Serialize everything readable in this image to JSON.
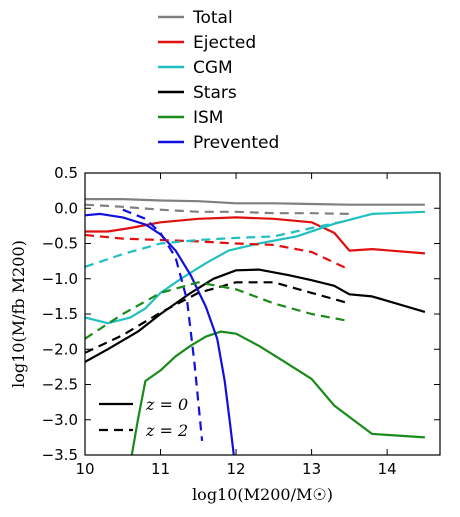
{
  "chart_data": {
    "type": "line",
    "title": "",
    "xlabel": "log10(M200/M☉)",
    "ylabel": "log10(M/fb M200)",
    "xlim": [
      10,
      14.7
    ],
    "ylim": [
      -3.5,
      0.5
    ],
    "xticks": [
      10,
      11,
      12,
      13,
      14
    ],
    "xtick_labels": [
      "10",
      "11",
      "12",
      "13",
      "14"
    ],
    "yticks": [
      0.5,
      0.0,
      -0.5,
      -1.0,
      -1.5,
      -2.0,
      -2.5,
      -3.0,
      -3.5
    ],
    "ytick_labels": [
      "0.5",
      "0.0",
      "−0.5",
      "−1.0",
      "−1.5",
      "−2.0",
      "−2.5",
      "−3.0",
      "−3.5"
    ],
    "grid": false,
    "legend_placement": "above",
    "series": [
      {
        "name": "Total",
        "color": "#808080",
        "linestyle": "solid",
        "x": [
          10.0,
          10.5,
          11.0,
          11.5,
          12.0,
          12.5,
          13.0,
          13.5,
          14.0,
          14.5
        ],
        "y": [
          0.13,
          0.13,
          0.11,
          0.1,
          0.07,
          0.07,
          0.06,
          0.05,
          0.05,
          0.05
        ]
      },
      {
        "name": "Ejected",
        "color": "#e01010",
        "linestyle": "solid",
        "x": [
          10.0,
          10.3,
          10.6,
          11.0,
          11.5,
          12.0,
          12.5,
          13.0,
          13.3,
          13.5,
          13.8,
          14.5
        ],
        "y": [
          -0.33,
          -0.33,
          -0.28,
          -0.2,
          -0.15,
          -0.13,
          -0.15,
          -0.2,
          -0.35,
          -0.6,
          -0.58,
          -0.64
        ]
      },
      {
        "name": "CGM",
        "color": "#20c0c0",
        "linestyle": "solid",
        "x": [
          10.0,
          10.3,
          10.6,
          10.8,
          11.0,
          11.3,
          11.6,
          11.9,
          12.3,
          12.8,
          13.3,
          13.8,
          14.5
        ],
        "y": [
          -1.55,
          -1.63,
          -1.55,
          -1.42,
          -1.2,
          -0.98,
          -0.78,
          -0.6,
          -0.5,
          -0.4,
          -0.22,
          -0.08,
          -0.05
        ]
      },
      {
        "name": "Stars",
        "color": "#000000",
        "linestyle": "solid",
        "x": [
          10.0,
          10.3,
          10.7,
          11.0,
          11.4,
          11.7,
          12.0,
          12.3,
          12.7,
          13.0,
          13.3,
          13.5,
          13.8,
          14.5
        ],
        "y": [
          -2.18,
          -2.0,
          -1.75,
          -1.5,
          -1.2,
          -1.0,
          -0.88,
          -0.87,
          -0.95,
          -1.02,
          -1.1,
          -1.22,
          -1.25,
          -1.47
        ]
      },
      {
        "name": "ISM",
        "color": "#1a8a1a",
        "linestyle": "solid",
        "x": [
          10.62,
          10.7,
          10.8,
          11.0,
          11.2,
          11.4,
          11.6,
          11.8,
          12.0,
          12.3,
          12.6,
          13.0,
          13.3,
          13.8,
          14.5
        ],
        "y": [
          -3.5,
          -3.0,
          -2.45,
          -2.3,
          -2.1,
          -1.95,
          -1.82,
          -1.75,
          -1.78,
          -1.95,
          -2.15,
          -2.42,
          -2.8,
          -3.2,
          -3.25
        ]
      },
      {
        "name": "Prevented",
        "color": "#1010e0",
        "linestyle": "solid",
        "x": [
          10.0,
          10.2,
          10.5,
          10.8,
          11.0,
          11.2,
          11.4,
          11.6,
          11.75,
          11.85,
          11.92,
          11.97
        ],
        "y": [
          -0.1,
          -0.08,
          -0.13,
          -0.23,
          -0.37,
          -0.6,
          -0.95,
          -1.4,
          -1.85,
          -2.45,
          -3.05,
          -3.5
        ]
      },
      {
        "name": "Total z=2",
        "color": "#808080",
        "linestyle": "dashed",
        "x": [
          10.0,
          10.5,
          11.0,
          11.5,
          12.0,
          12.5,
          13.0,
          13.5
        ],
        "y": [
          0.05,
          0.02,
          -0.02,
          -0.05,
          -0.05,
          -0.07,
          -0.07,
          -0.08
        ]
      },
      {
        "name": "Ejected z=2",
        "color": "#e01010",
        "linestyle": "dashed",
        "x": [
          10.0,
          10.5,
          11.0,
          11.5,
          12.0,
          12.5,
          13.0,
          13.5
        ],
        "y": [
          -0.38,
          -0.43,
          -0.45,
          -0.47,
          -0.5,
          -0.52,
          -0.62,
          -0.87
        ]
      },
      {
        "name": "CGM z=2",
        "color": "#20c0c0",
        "linestyle": "dashed",
        "x": [
          10.0,
          10.5,
          11.0,
          11.5,
          12.0,
          12.5,
          13.0,
          13.5
        ],
        "y": [
          -0.83,
          -0.65,
          -0.5,
          -0.45,
          -0.42,
          -0.4,
          -0.28,
          -0.17
        ]
      },
      {
        "name": "Stars z=2",
        "color": "#000000",
        "linestyle": "dashed",
        "x": [
          10.0,
          10.5,
          11.0,
          11.5,
          12.0,
          12.5,
          13.0,
          13.5
        ],
        "y": [
          -2.05,
          -1.8,
          -1.48,
          -1.2,
          -1.05,
          -1.05,
          -1.2,
          -1.35
        ]
      },
      {
        "name": "ISM z=2",
        "color": "#1a8a1a",
        "linestyle": "dashed",
        "x": [
          10.0,
          10.5,
          11.0,
          11.5,
          12.0,
          12.5,
          13.0,
          13.5
        ],
        "y": [
          -1.85,
          -1.5,
          -1.2,
          -1.05,
          -1.15,
          -1.35,
          -1.5,
          -1.6
        ]
      },
      {
        "name": "Prevented z=2",
        "color": "#1010e0",
        "linestyle": "dashed",
        "x": [
          10.5,
          10.8,
          11.0,
          11.2,
          11.35,
          11.45,
          11.55
        ],
        "y": [
          -0.02,
          -0.15,
          -0.35,
          -0.7,
          -1.3,
          -2.2,
          -3.3
        ]
      }
    ],
    "legend": [
      {
        "label": "Total",
        "color": "#808080"
      },
      {
        "label": "Ejected",
        "color": "#e01010"
      },
      {
        "label": "CGM",
        "color": "#20c0c0"
      },
      {
        "label": "Stars",
        "color": "#000000"
      },
      {
        "label": "ISM",
        "color": "#1a8a1a"
      },
      {
        "label": "Prevented",
        "color": "#1010e0"
      }
    ],
    "style_legend": [
      {
        "label": "z = 0",
        "linestyle": "solid",
        "color": "#000000"
      },
      {
        "label": "z = 2",
        "linestyle": "dashed",
        "color": "#000000"
      }
    ]
  }
}
